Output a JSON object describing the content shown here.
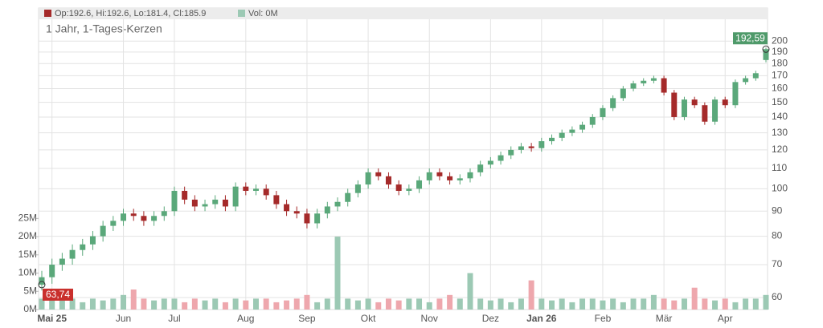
{
  "chart_data": {
    "type": "candlestick",
    "legend_ohlc": "Op:192.6, Hi:192.6, Lo:181.4, Cl:185.9",
    "legend_ohlc_color": "#a52a2a",
    "legend_volume": "Vol: 0M",
    "legend_volume_color": "#9cc9b4",
    "subtitle": "1 Jahr, 1-Tages-Kerzen",
    "categories": [
      null,
      "Mai 25",
      null,
      null,
      null,
      null,
      null,
      null,
      "Jun",
      null,
      null,
      null,
      null,
      "Jul",
      null,
      null,
      null,
      null,
      null,
      null,
      "Aug",
      null,
      null,
      null,
      null,
      null,
      "Sep",
      null,
      null,
      null,
      null,
      null,
      "Okt",
      null,
      null,
      null,
      null,
      null,
      "Nov",
      null,
      null,
      null,
      null,
      null,
      "Dez",
      null,
      null,
      null,
      null,
      "Jan 26",
      null,
      null,
      null,
      null,
      null,
      "Feb",
      null,
      null,
      null,
      null,
      null,
      "Mär",
      null,
      null,
      null,
      null,
      null,
      "Apr",
      null,
      null,
      null,
      null
    ],
    "bold_categories": [
      "Mai 25",
      "Jan 26"
    ],
    "open": [
      63.74,
      66,
      70,
      72,
      75,
      77,
      80,
      84,
      86,
      89,
      88,
      86,
      88,
      90,
      99,
      95,
      92,
      93,
      95,
      92,
      101,
      99,
      100,
      97,
      93,
      90,
      89,
      85,
      89,
      92,
      94,
      98,
      102,
      108,
      106,
      102,
      99,
      100,
      104,
      108,
      106,
      104,
      105,
      108,
      112,
      114,
      117,
      120,
      122,
      121,
      125,
      127,
      130,
      132,
      135,
      140,
      146,
      153,
      160,
      164,
      166,
      168,
      157,
      140,
      152,
      148,
      137,
      152,
      148,
      165,
      168,
      183
    ],
    "high": [
      68,
      72,
      74,
      77,
      79,
      82,
      86,
      88,
      91,
      91,
      90,
      90,
      92,
      101,
      101,
      97,
      95,
      97,
      97,
      103,
      103,
      102,
      102,
      99,
      95,
      92,
      91,
      91,
      94,
      96,
      100,
      104,
      110,
      110,
      108,
      104,
      102,
      106,
      110,
      110,
      108,
      107,
      110,
      114,
      116,
      119,
      122,
      124,
      124,
      127,
      129,
      132,
      134,
      137,
      142,
      148,
      155,
      162,
      166,
      168,
      170,
      170,
      159,
      154,
      154,
      150,
      154,
      154,
      167,
      170,
      174,
      194
    ],
    "low": [
      62,
      64,
      68,
      70,
      73,
      75,
      78,
      82,
      84,
      86,
      84,
      84,
      86,
      88,
      93,
      90,
      90,
      91,
      90,
      90,
      97,
      97,
      95,
      91,
      88,
      87,
      83,
      83,
      87,
      90,
      92,
      96,
      100,
      104,
      100,
      97,
      97,
      98,
      102,
      104,
      102,
      102,
      103,
      106,
      110,
      112,
      115,
      118,
      119,
      119,
      123,
      125,
      128,
      130,
      133,
      138,
      144,
      151,
      158,
      162,
      164,
      155,
      138,
      138,
      146,
      135,
      135,
      146,
      146,
      163,
      166,
      181
    ],
    "close": [
      66,
      70,
      72,
      75,
      77,
      80,
      84,
      86,
      89,
      88,
      86,
      88,
      90,
      99,
      95,
      92,
      93,
      95,
      92,
      101,
      99,
      100,
      97,
      93,
      90,
      89,
      85,
      89,
      92,
      94,
      98,
      102,
      108,
      106,
      102,
      99,
      100,
      104,
      108,
      106,
      104,
      105,
      108,
      112,
      114,
      117,
      120,
      122,
      121,
      125,
      127,
      130,
      132,
      135,
      140,
      146,
      153,
      160,
      164,
      166,
      168,
      157,
      140,
      152,
      148,
      137,
      152,
      148,
      165,
      168,
      172,
      192.59
    ],
    "volume": [
      3,
      3,
      2.5,
      3,
      2,
      3,
      2.5,
      3,
      4,
      5.5,
      3,
      2.5,
      3,
      3,
      2,
      3,
      2.5,
      3,
      2,
      3,
      2.5,
      3,
      3,
      2,
      2.5,
      3,
      4,
      2,
      3,
      20,
      3,
      2.5,
      3,
      2,
      3,
      2.5,
      3,
      3,
      2,
      3,
      4,
      3,
      10,
      3,
      2.5,
      3,
      2,
      3,
      8,
      3,
      2.5,
      3,
      2,
      3,
      3,
      2.5,
      3,
      2,
      3,
      3,
      4,
      3,
      2.5,
      3,
      6,
      3,
      2.5,
      3,
      2,
      3,
      3,
      4
    ],
    "up_color": "#5aa87a",
    "down_color": "#a52a2a",
    "up_volume_color": "#9cc9b4",
    "down_volume_color": "#eea7ad",
    "log_scale": true,
    "ylim": [
      56.7,
      233.6
    ],
    "yticks": [
      60,
      70,
      80,
      90,
      100,
      110,
      120,
      130,
      140,
      150,
      160,
      170,
      180,
      190,
      200
    ],
    "y2lim": [
      0,
      82.7
    ],
    "y2ticks": [
      {
        "value": 0,
        "label": "0M"
      },
      {
        "value": 5,
        "label": "5M"
      },
      {
        "value": 10,
        "label": "10M"
      },
      {
        "value": 15,
        "label": "15M"
      },
      {
        "value": 20,
        "label": "20M"
      },
      {
        "value": 25,
        "label": "25M"
      }
    ],
    "grid": true,
    "markers": [
      {
        "index": 0,
        "value": 63.74,
        "label": "63,74",
        "color": "#c9302c"
      },
      {
        "index": 71,
        "value": 192.59,
        "label": "192,59",
        "color": "#4f9a6a"
      }
    ]
  }
}
